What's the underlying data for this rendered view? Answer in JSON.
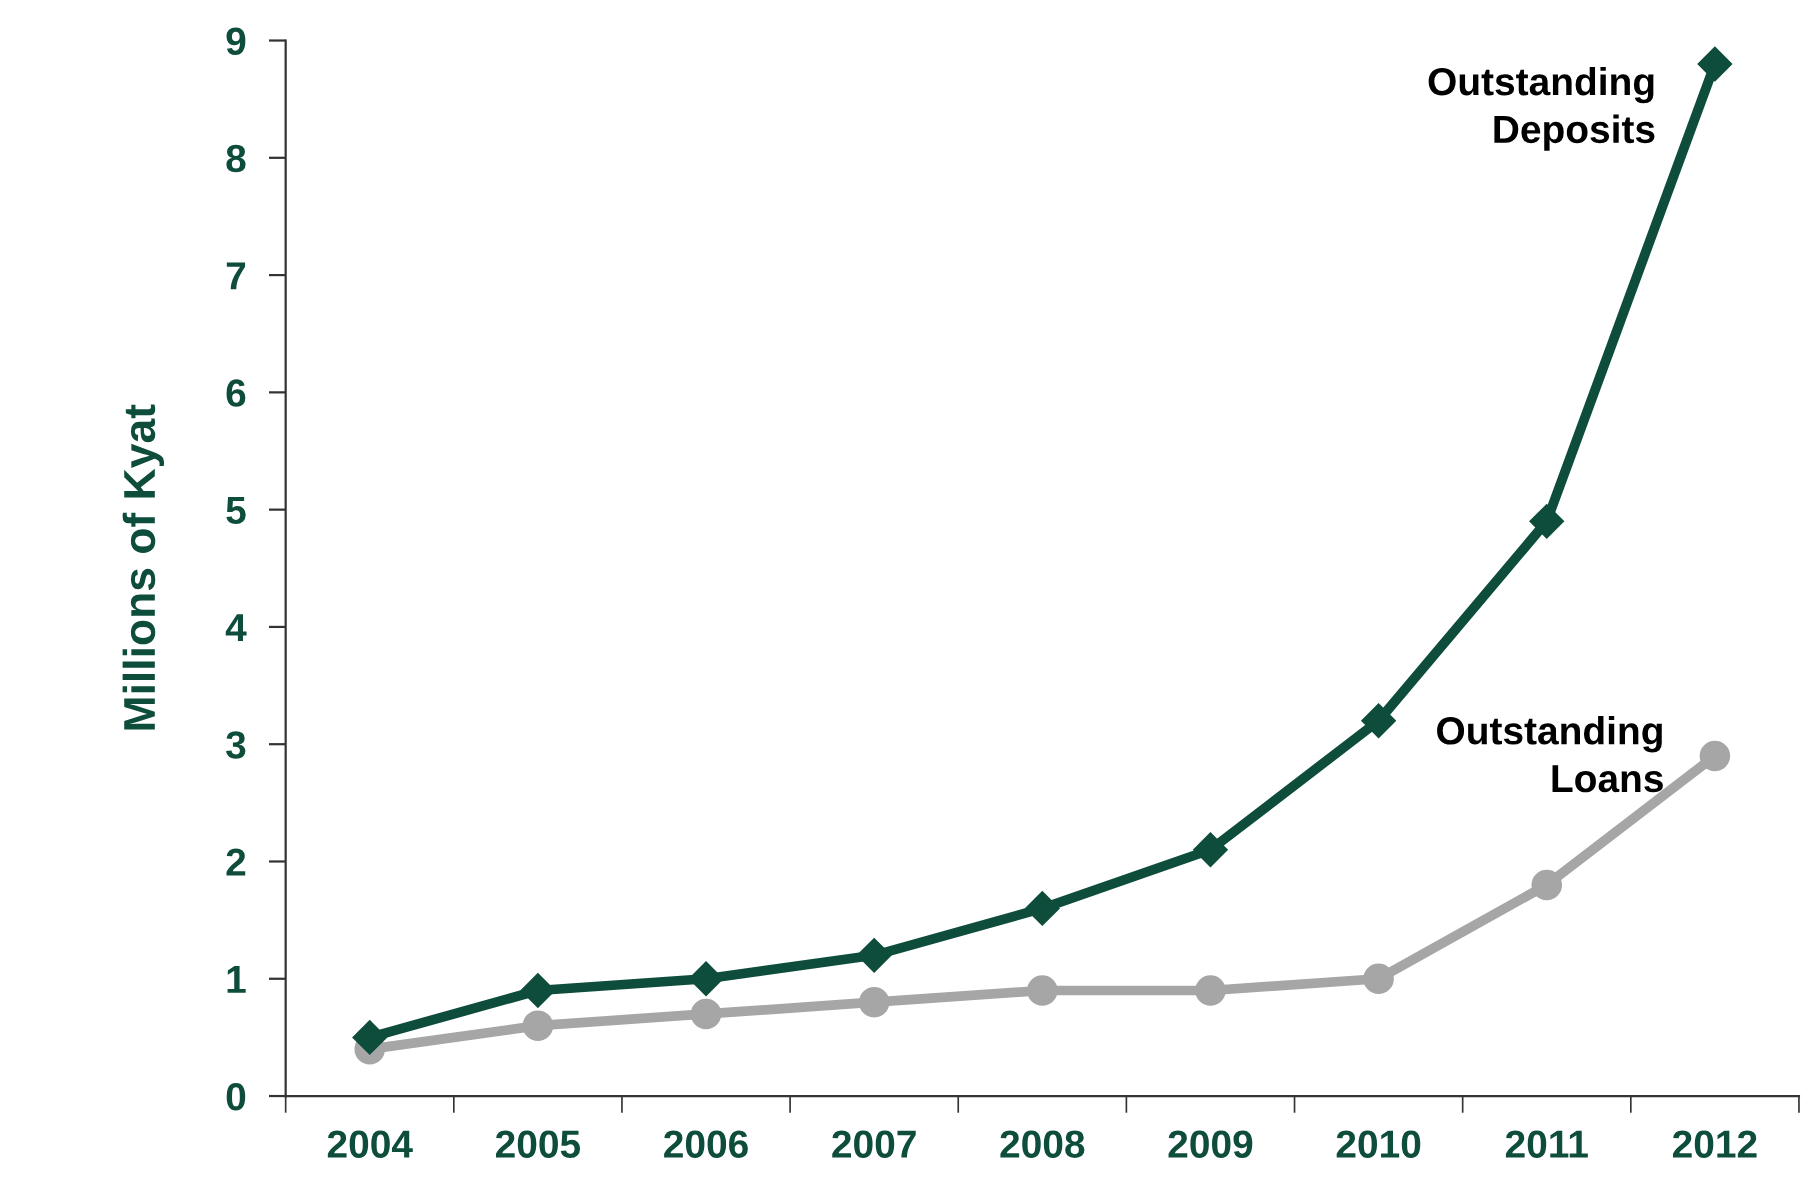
{
  "chart_data": {
    "type": "line",
    "ylabel": "Millions of Kyat",
    "categories": [
      "2004",
      "2005",
      "2006",
      "2007",
      "2008",
      "2009",
      "2010",
      "2011",
      "2012"
    ],
    "series": [
      {
        "name": "Outstanding Deposits",
        "color": "#0e4d3c",
        "marker": "diamond",
        "values": [
          0.5,
          0.9,
          1.0,
          1.2,
          1.6,
          2.1,
          3.2,
          4.9,
          8.8
        ]
      },
      {
        "name": "Outstanding Loans",
        "color": "#a6a6a6",
        "marker": "circle",
        "values": [
          0.4,
          0.6,
          0.7,
          0.8,
          0.9,
          0.9,
          1.0,
          1.8,
          2.9
        ]
      }
    ],
    "ylim": [
      0,
      9
    ],
    "yticks": [
      0,
      1,
      2,
      3,
      4,
      5,
      6,
      7,
      8,
      9
    ],
    "grid": false,
    "legend": false,
    "line_style": "solid"
  }
}
